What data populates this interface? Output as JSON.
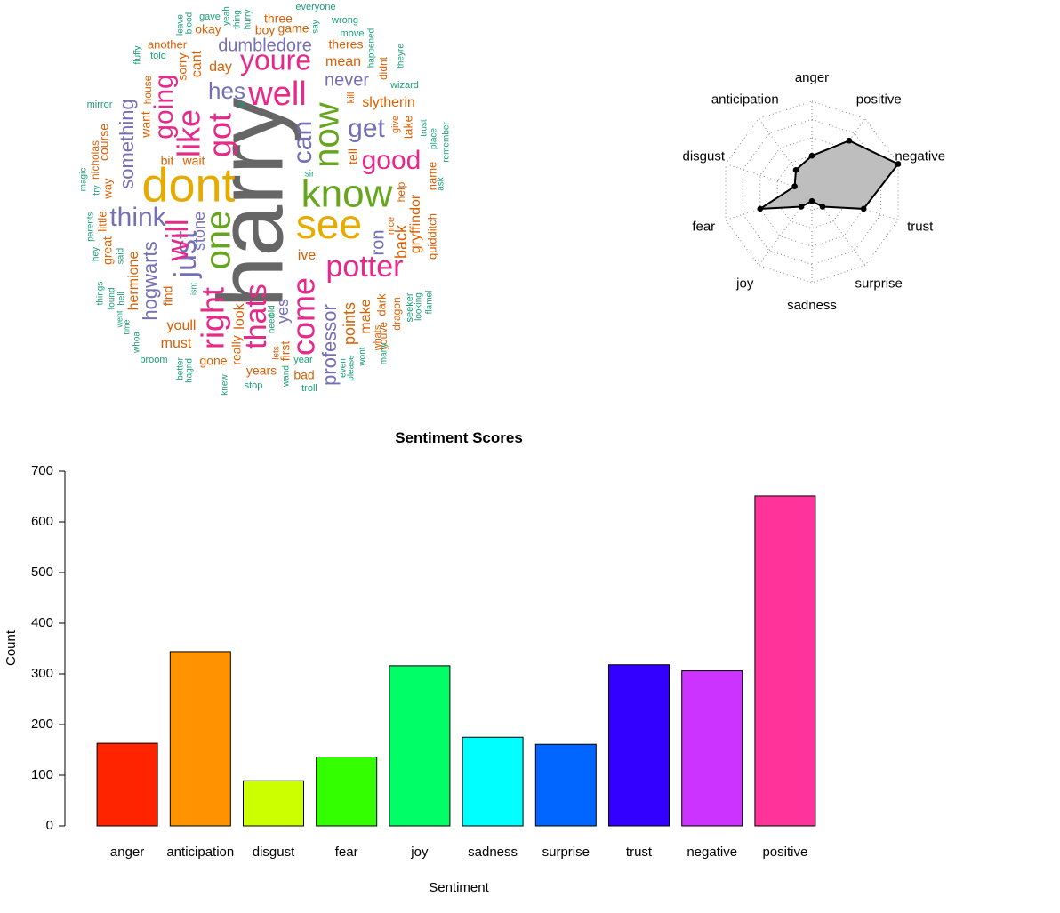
{
  "colors": {
    "dark2": [
      "#1b9e77",
      "#d95f02",
      "#7570b3",
      "#e7298a",
      "#66a61e",
      "#e6ab02",
      "#666666"
    ],
    "radar_fill": "#bebebe",
    "radar_line": "#000000"
  },
  "chart_data": [
    {
      "type": "wordcloud",
      "words": [
        {
          "text": "harry",
          "weight": 7,
          "color": 6
        },
        {
          "text": "dont",
          "weight": 6,
          "color": 5
        },
        {
          "text": "see",
          "weight": 6,
          "color": 5
        },
        {
          "text": "know",
          "weight": 6,
          "color": 4
        },
        {
          "text": "now",
          "weight": 5,
          "color": 4
        },
        {
          "text": "one",
          "weight": 5,
          "color": 4
        },
        {
          "text": "well",
          "weight": 5,
          "color": 3
        },
        {
          "text": "youre",
          "weight": 5,
          "color": 3
        },
        {
          "text": "right",
          "weight": 5,
          "color": 3
        },
        {
          "text": "got",
          "weight": 5,
          "color": 3
        },
        {
          "text": "like",
          "weight": 5,
          "color": 3
        },
        {
          "text": "just",
          "weight": 5,
          "color": 2
        },
        {
          "text": "will",
          "weight": 5,
          "color": 3
        },
        {
          "text": "potter",
          "weight": 5,
          "color": 3
        },
        {
          "text": "come",
          "weight": 5,
          "color": 3
        },
        {
          "text": "thats",
          "weight": 5,
          "color": 3
        },
        {
          "text": "can",
          "weight": 4,
          "color": 2
        },
        {
          "text": "good",
          "weight": 4,
          "color": 3
        },
        {
          "text": "going",
          "weight": 4,
          "color": 3
        },
        {
          "text": "think",
          "weight": 4,
          "color": 2
        },
        {
          "text": "get",
          "weight": 4,
          "color": 2
        },
        {
          "text": "hes",
          "weight": 4,
          "color": 2
        },
        {
          "text": "something",
          "weight": 4,
          "color": 2
        },
        {
          "text": "hogwarts",
          "weight": 4,
          "color": 2
        },
        {
          "text": "professor",
          "weight": 4,
          "color": 2
        },
        {
          "text": "dumbledore",
          "weight": 3,
          "color": 2
        },
        {
          "text": "never",
          "weight": 3,
          "color": 2
        },
        {
          "text": "ron",
          "weight": 3,
          "color": 2
        },
        {
          "text": "stone",
          "weight": 3,
          "color": 2
        },
        {
          "text": "yes",
          "weight": 3,
          "color": 2
        },
        {
          "text": "points",
          "weight": 3,
          "color": 1
        },
        {
          "text": "slytherin",
          "weight": 3,
          "color": 1
        },
        {
          "text": "mean",
          "weight": 3,
          "color": 1
        },
        {
          "text": "day",
          "weight": 3,
          "color": 1
        },
        {
          "text": "cant",
          "weight": 3,
          "color": 1
        },
        {
          "text": "back",
          "weight": 3,
          "color": 1
        },
        {
          "text": "gryffindor",
          "weight": 3,
          "color": 1
        },
        {
          "text": "hermione",
          "weight": 3,
          "color": 1
        },
        {
          "text": "youll",
          "weight": 3,
          "color": 1
        },
        {
          "text": "must",
          "weight": 3,
          "color": 1
        },
        {
          "text": "make",
          "weight": 3,
          "color": 1
        },
        {
          "text": "look",
          "weight": 3,
          "color": 1
        },
        {
          "text": "first",
          "weight": 3,
          "color": 1
        },
        {
          "text": "ive",
          "weight": 3,
          "color": 1
        },
        {
          "text": "really",
          "weight": 3,
          "color": 1
        },
        {
          "text": "course",
          "weight": 2,
          "color": 1
        },
        {
          "text": "want",
          "weight": 2,
          "color": 1
        },
        {
          "text": "bit",
          "weight": 2,
          "color": 1
        },
        {
          "text": "wait",
          "weight": 2,
          "color": 1
        },
        {
          "text": "find",
          "weight": 2,
          "color": 1
        },
        {
          "text": "sorry",
          "weight": 2,
          "color": 1
        },
        {
          "text": "okay",
          "weight": 2,
          "color": 1
        },
        {
          "text": "three",
          "weight": 2,
          "color": 1
        },
        {
          "text": "boy",
          "weight": 2,
          "color": 1
        },
        {
          "text": "game",
          "weight": 2,
          "color": 1
        },
        {
          "text": "another",
          "weight": 2,
          "color": 1
        },
        {
          "text": "theres",
          "weight": 2,
          "color": 1
        },
        {
          "text": "take",
          "weight": 2,
          "color": 1
        },
        {
          "text": "tell",
          "weight": 2,
          "color": 1
        },
        {
          "text": "help",
          "weight": 2,
          "color": 1
        },
        {
          "text": "name",
          "weight": 2,
          "color": 1
        },
        {
          "text": "quidditch",
          "weight": 2,
          "color": 1
        },
        {
          "text": "great",
          "weight": 2,
          "color": 1
        },
        {
          "text": "little",
          "weight": 2,
          "color": 1
        },
        {
          "text": "way",
          "weight": 2,
          "color": 1
        },
        {
          "text": "nicholas",
          "weight": 2,
          "color": 1
        },
        {
          "text": "house",
          "weight": 2,
          "color": 1
        },
        {
          "text": "years",
          "weight": 2,
          "color": 1
        },
        {
          "text": "gone",
          "weight": 2,
          "color": 1
        },
        {
          "text": "bad",
          "weight": 2,
          "color": 1
        },
        {
          "text": "dark",
          "weight": 2,
          "color": 1
        },
        {
          "text": "dragon",
          "weight": 2,
          "color": 1
        },
        {
          "text": "youve",
          "weight": 2,
          "color": 1
        },
        {
          "text": "whats",
          "weight": 2,
          "color": 1
        },
        {
          "text": "kill",
          "weight": 2,
          "color": 1
        },
        {
          "text": "didnt",
          "weight": 2,
          "color": 1
        },
        {
          "text": "give",
          "weight": 2,
          "color": 1
        },
        {
          "text": "nice",
          "weight": 2,
          "color": 1
        },
        {
          "text": "lets",
          "weight": 1,
          "color": 1
        },
        {
          "text": "everyone",
          "weight": 1,
          "color": 0
        },
        {
          "text": "wrong",
          "weight": 1,
          "color": 0
        },
        {
          "text": "move",
          "weight": 1,
          "color": 0
        },
        {
          "text": "happened",
          "weight": 1,
          "color": 0
        },
        {
          "text": "theyre",
          "weight": 1,
          "color": 0
        },
        {
          "text": "wizard",
          "weight": 1,
          "color": 0
        },
        {
          "text": "gave",
          "weight": 1,
          "color": 0
        },
        {
          "text": "leave",
          "weight": 1,
          "color": 0
        },
        {
          "text": "blood",
          "weight": 1,
          "color": 0
        },
        {
          "text": "yeah",
          "weight": 1,
          "color": 0
        },
        {
          "text": "thing",
          "weight": 1,
          "color": 0
        },
        {
          "text": "hurry",
          "weight": 1,
          "color": 0
        },
        {
          "text": "say",
          "weight": 1,
          "color": 0
        },
        {
          "text": "fluffy",
          "weight": 1,
          "color": 0
        },
        {
          "text": "told",
          "weight": 1,
          "color": 0
        },
        {
          "text": "mirror",
          "weight": 1,
          "color": 0
        },
        {
          "text": "ill",
          "weight": 1,
          "color": 0
        },
        {
          "text": "trust",
          "weight": 1,
          "color": 0
        },
        {
          "text": "place",
          "weight": 1,
          "color": 0
        },
        {
          "text": "remember",
          "weight": 1,
          "color": 0
        },
        {
          "text": "ask",
          "weight": 1,
          "color": 0
        },
        {
          "text": "sir",
          "weight": 1,
          "color": 0
        },
        {
          "text": "magic",
          "weight": 1,
          "color": 0
        },
        {
          "text": "try",
          "weight": 1,
          "color": 0
        },
        {
          "text": "parents",
          "weight": 1,
          "color": 0
        },
        {
          "text": "hey",
          "weight": 1,
          "color": 0
        },
        {
          "text": "said",
          "weight": 1,
          "color": 0
        },
        {
          "text": "things",
          "weight": 1,
          "color": 0
        },
        {
          "text": "found",
          "weight": 1,
          "color": 0
        },
        {
          "text": "hell",
          "weight": 1,
          "color": 0
        },
        {
          "text": "went",
          "weight": 1,
          "color": 0
        },
        {
          "text": "time",
          "weight": 1,
          "color": 0
        },
        {
          "text": "whoa",
          "weight": 1,
          "color": 0
        },
        {
          "text": "broom",
          "weight": 1,
          "color": 0
        },
        {
          "text": "isnt",
          "weight": 1,
          "color": 0
        },
        {
          "text": "better",
          "weight": 1,
          "color": 0
        },
        {
          "text": "hagrid",
          "weight": 1,
          "color": 0
        },
        {
          "text": "knew",
          "weight": 1,
          "color": 0
        },
        {
          "text": "stop",
          "weight": 1,
          "color": 0
        },
        {
          "text": "old",
          "weight": 1,
          "color": 0
        },
        {
          "text": "need",
          "weight": 1,
          "color": 0
        },
        {
          "text": "wand",
          "weight": 1,
          "color": 0
        },
        {
          "text": "troll",
          "weight": 1,
          "color": 0
        },
        {
          "text": "year",
          "weight": 1,
          "color": 0
        },
        {
          "text": "even",
          "weight": 1,
          "color": 0
        },
        {
          "text": "please",
          "weight": 1,
          "color": 0
        },
        {
          "text": "wont",
          "weight": 1,
          "color": 0
        },
        {
          "text": "many",
          "weight": 1,
          "color": 0
        },
        {
          "text": "seeker",
          "weight": 1,
          "color": 0
        },
        {
          "text": "looking",
          "weight": 1,
          "color": 0
        },
        {
          "text": "flamel",
          "weight": 1,
          "color": 0
        }
      ]
    },
    {
      "type": "radar",
      "axes": [
        "anger",
        "positive",
        "negative",
        "trust",
        "surprise",
        "sadness",
        "joy",
        "fear",
        "disgust",
        "anticipation"
      ],
      "values": [
        0.4,
        0.7,
        1.0,
        0.6,
        0.2,
        0.1,
        0.2,
        0.6,
        0.2,
        0.3
      ],
      "rings": 5,
      "range": [
        0,
        1
      ]
    },
    {
      "type": "bar",
      "title": "Sentiment Scores",
      "xlabel": "Sentiment",
      "ylabel": "Count",
      "categories": [
        "anger",
        "anticipation",
        "disgust",
        "fear",
        "joy",
        "sadness",
        "surprise",
        "trust",
        "negative",
        "positive"
      ],
      "values": [
        163,
        344,
        89,
        136,
        316,
        175,
        161,
        318,
        306,
        651
      ],
      "colors": [
        "#ff2400",
        "#ff9200",
        "#ccff00",
        "#33ff00",
        "#00ff66",
        "#00ffff",
        "#0066ff",
        "#3300ff",
        "#cc33ff",
        "#ff3399"
      ],
      "yticks": [
        0,
        100,
        200,
        300,
        400,
        500,
        600,
        700
      ],
      "ylim": [
        0,
        700
      ],
      "grid": false,
      "legend": "none"
    }
  ]
}
